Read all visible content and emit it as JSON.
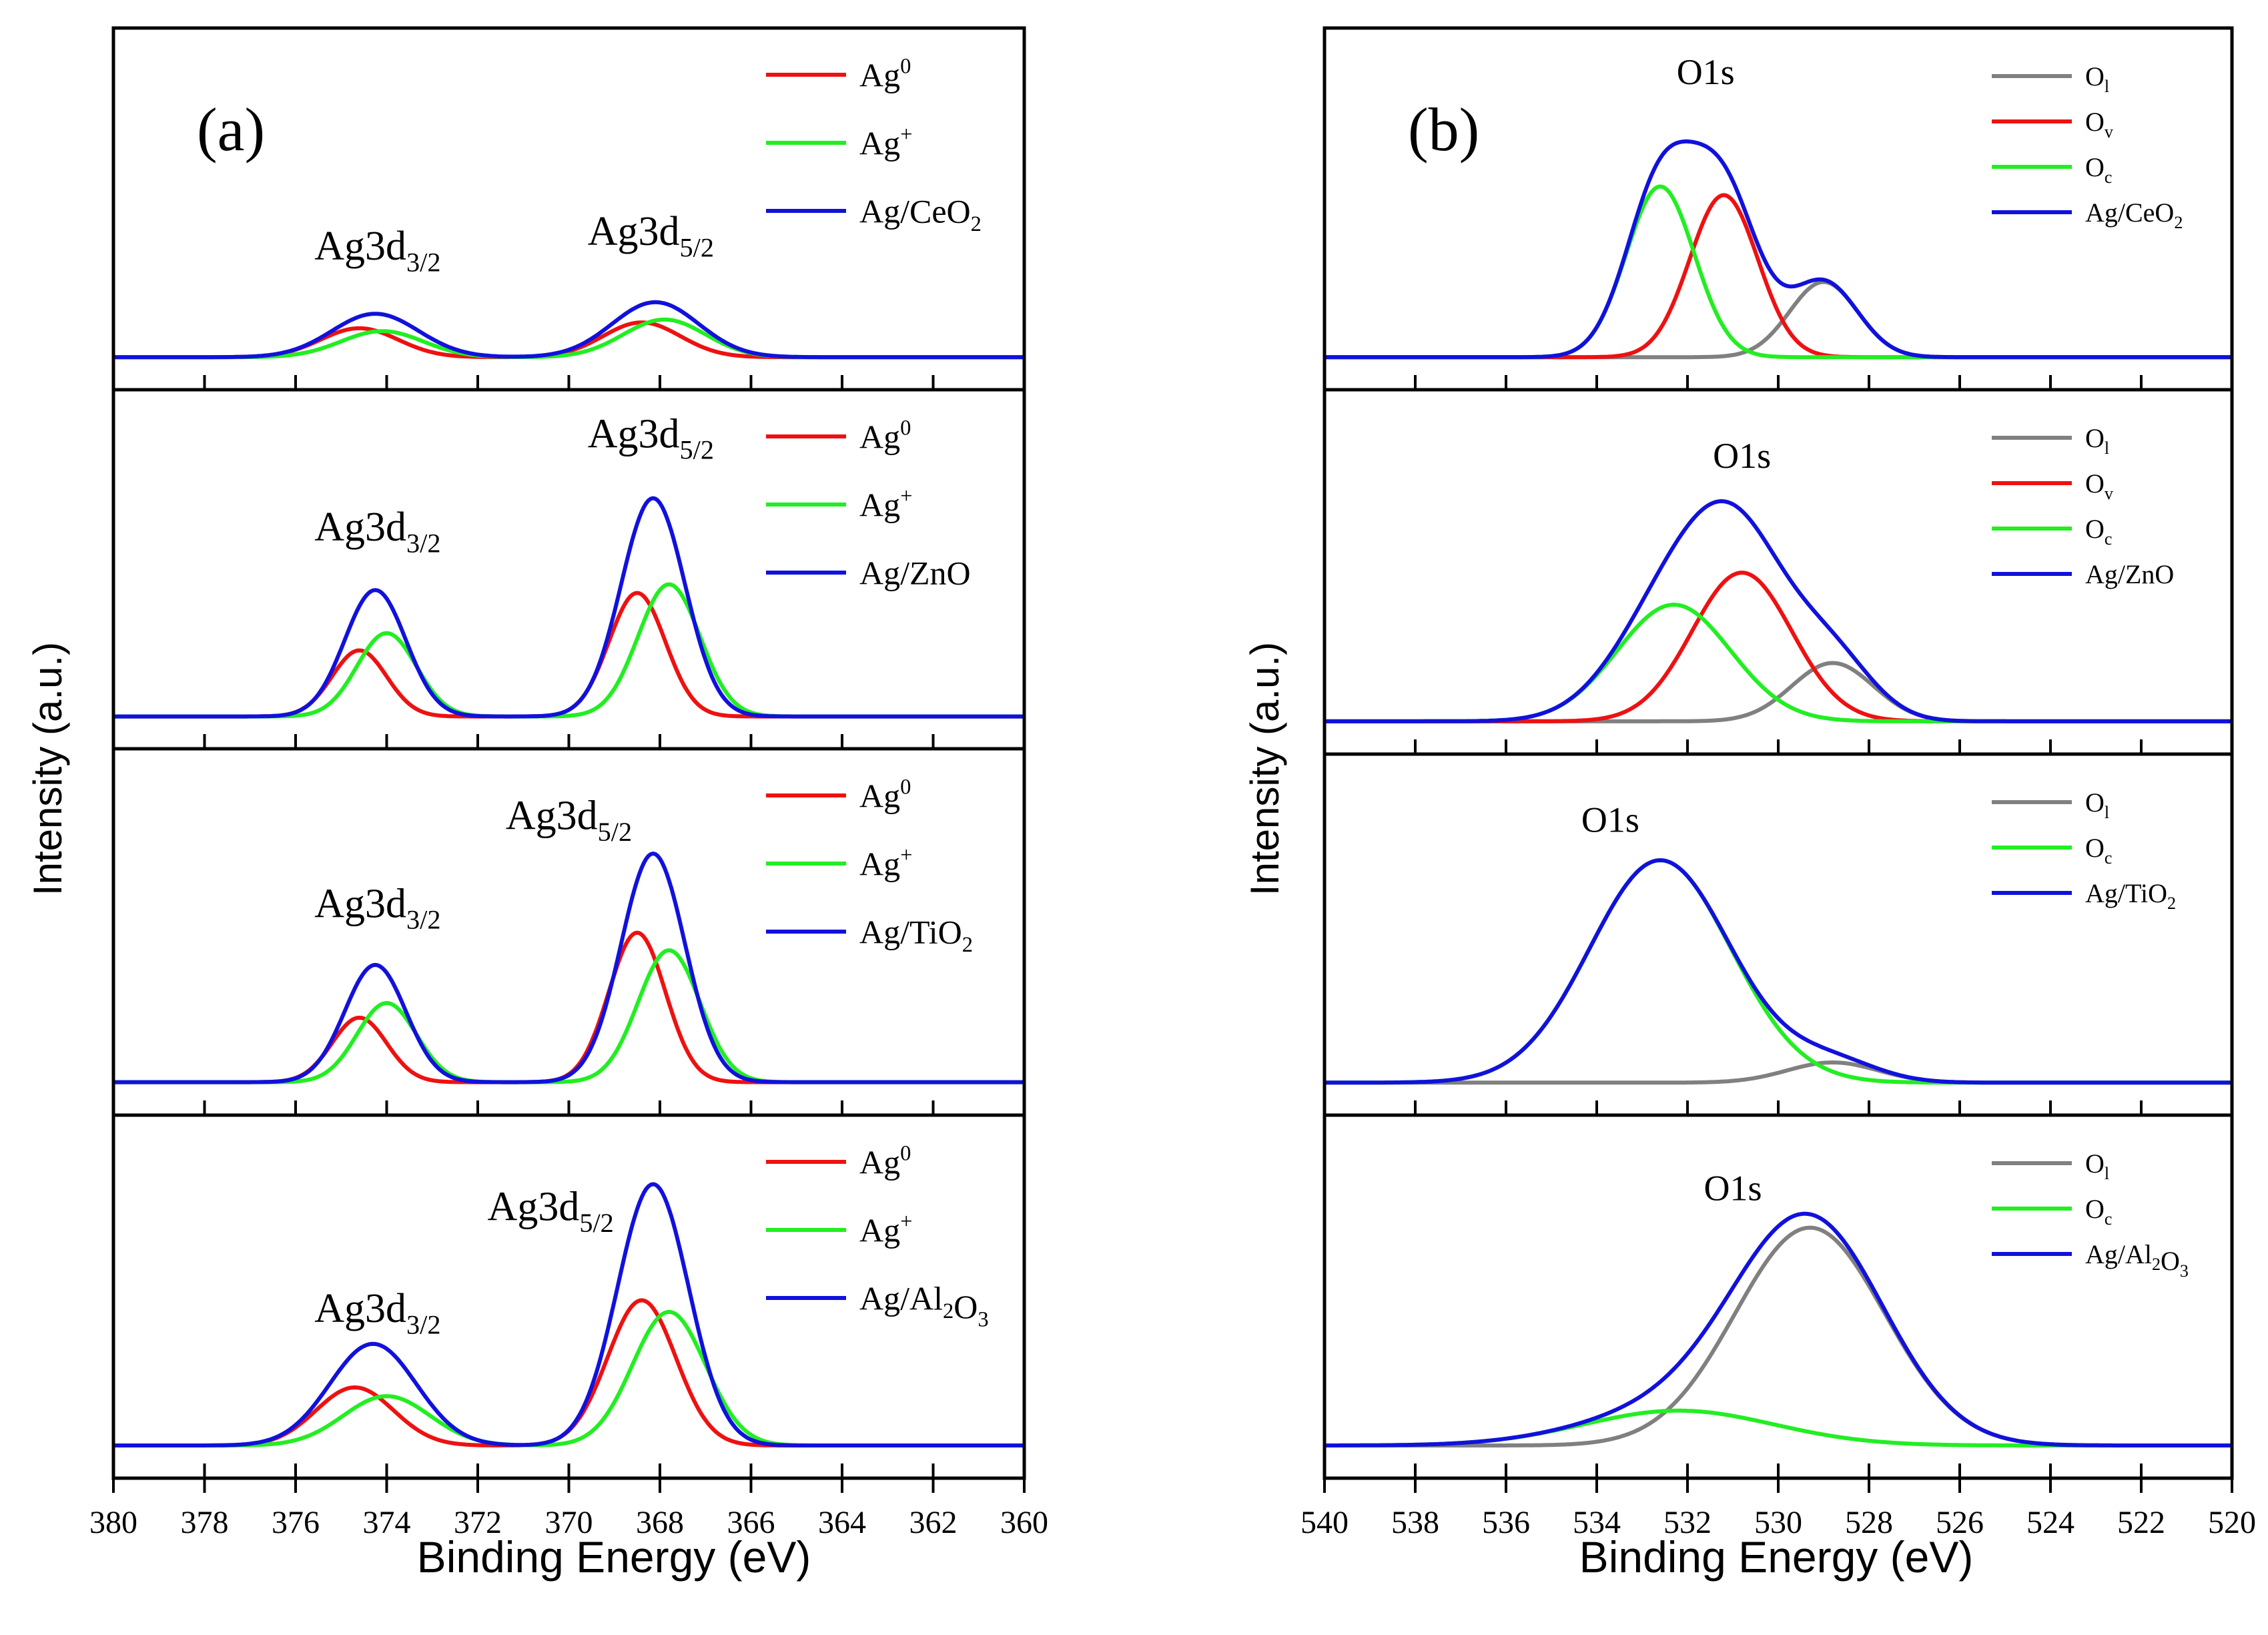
{
  "figure": {
    "panel_labels": [
      "(a)",
      "(b)"
    ],
    "ylabel": "Intensity (a.u.)",
    "xlabel": "Binding Energy (eV)",
    "colors": {
      "red": "#ee1111",
      "green": "#22ee22",
      "blue": "#1111dd",
      "gray": "#808080"
    }
  },
  "chart_data": [
    {
      "type": "line",
      "panel": "(a)",
      "xlabel": "Binding Energy (eV)",
      "ylabel": "Intensity (a.u.)",
      "xlim": [
        380,
        360
      ],
      "xticks": [
        380,
        378,
        376,
        374,
        372,
        370,
        368,
        366,
        364,
        362,
        360
      ],
      "grid": false,
      "legend_placement": "top-right",
      "subplots": [
        {
          "legend": [
            "Ag",
            "Ag",
            "Ag/CeO"
          ],
          "legend_rich": [
            [
              "Ag",
              "0",
              "sup"
            ],
            [
              "Ag",
              "+",
              "sup"
            ],
            [
              "Ag/CeO",
              "2",
              "sub"
            ]
          ],
          "annotations": [
            {
              "text": "Ag3d",
              "sub": "3/2",
              "x": 374.2,
              "y": 0.4
            },
            {
              "text": "Ag3d",
              "sub": "5/2",
              "x": 368.2,
              "y": 0.44
            }
          ],
          "ymax": 1.0,
          "peaks": [
            {
              "series": "Ag0",
              "color": "#ee1111",
              "components": [
                [
                  374.6,
                  0.1,
                  0.85
                ],
                [
                  368.4,
                  0.12,
                  0.85
                ]
              ]
            },
            {
              "series": "Ag+",
              "color": "#22ee22",
              "components": [
                [
                  374.1,
                  0.09,
                  0.9
                ],
                [
                  367.9,
                  0.13,
                  0.9
                ]
              ]
            },
            {
              "series": "total",
              "color": "#1111dd",
              "components": [
                [
                  374.25,
                  0.15,
                  0.95
                ],
                [
                  368.1,
                  0.19,
                  0.95
                ]
              ]
            }
          ]
        },
        {
          "legend": [
            "Ag",
            "Ag",
            "Ag/ZnO"
          ],
          "legend_rich": [
            [
              "Ag",
              "0",
              "sup"
            ],
            [
              "Ag",
              "+",
              "sup"
            ],
            [
              "Ag/ZnO",
              "",
              "none"
            ]
          ],
          "annotations": [
            {
              "text": "Ag3d",
              "sub": "3/2",
              "x": 374.2,
              "y": 0.62
            },
            {
              "text": "Ag3d",
              "sub": "5/2",
              "x": 368.2,
              "y": 0.88
            }
          ],
          "ymax": 1.0,
          "peaks": [
            {
              "series": "Ag0",
              "color": "#ee1111",
              "components": [
                [
                  374.6,
                  0.23,
                  0.6
                ],
                [
                  368.5,
                  0.43,
                  0.62
                ]
              ]
            },
            {
              "series": "Ag+",
              "color": "#22ee22",
              "components": [
                [
                  374.0,
                  0.29,
                  0.65
                ],
                [
                  367.8,
                  0.46,
                  0.68
                ]
              ]
            },
            {
              "series": "total",
              "color": "#1111dd",
              "components": [
                [
                  374.25,
                  0.44,
                  0.67
                ],
                [
                  368.15,
                  0.76,
                  0.7
                ]
              ]
            }
          ]
        },
        {
          "legend": [
            "Ag",
            "Ag",
            "Ag/TiO"
          ],
          "legend_rich": [
            [
              "Ag",
              "0",
              "sup"
            ],
            [
              "Ag",
              "+",
              "sup"
            ],
            [
              "Ag/TiO",
              "2",
              "sub"
            ]
          ],
          "annotations": [
            {
              "text": "Ag3d",
              "sub": "3/2",
              "x": 374.2,
              "y": 0.58
            },
            {
              "text": "Ag3d",
              "sub": "5/2",
              "x": 370.0,
              "y": 0.82
            }
          ],
          "ymax": 1.0,
          "peaks": [
            {
              "series": "Ag0",
              "color": "#ee1111",
              "components": [
                [
                  374.6,
                  0.22,
                  0.6
                ],
                [
                  368.5,
                  0.51,
                  0.62
                ]
              ]
            },
            {
              "series": "Ag+",
              "color": "#22ee22",
              "components": [
                [
                  374.0,
                  0.27,
                  0.65
                ],
                [
                  367.8,
                  0.45,
                  0.68
                ]
              ]
            },
            {
              "series": "total",
              "color": "#1111dd",
              "components": [
                [
                  374.25,
                  0.4,
                  0.67
                ],
                [
                  368.15,
                  0.78,
                  0.7
                ]
              ]
            }
          ]
        },
        {
          "legend": [
            "Ag",
            "Ag",
            "Ag/Al"
          ],
          "legend_rich": [
            [
              "Ag",
              "0",
              "sup"
            ],
            [
              "Ag",
              "+",
              "sup"
            ],
            [
              "Ag/Al",
              "2",
              "sub",
              "O",
              "3",
              "sub"
            ]
          ],
          "annotations": [
            {
              "text": "Ag3d",
              "sub": "3/2",
              "x": 374.2,
              "y": 0.47
            },
            {
              "text": "Ag3d",
              "sub": "5/2",
              "x": 370.4,
              "y": 0.75
            }
          ],
          "ymax": 1.0,
          "peaks": [
            {
              "series": "Ag0",
              "color": "#ee1111",
              "components": [
                [
                  374.7,
                  0.2,
                  0.85
                ],
                [
                  368.4,
                  0.5,
                  0.75
                ]
              ]
            },
            {
              "series": "Ag+",
              "color": "#22ee22",
              "components": [
                [
                  374.0,
                  0.17,
                  0.95
                ],
                [
                  367.8,
                  0.46,
                  0.8
                ]
              ]
            },
            {
              "series": "total",
              "color": "#1111dd",
              "components": [
                [
                  374.3,
                  0.35,
                  0.95
                ],
                [
                  368.15,
                  0.9,
                  0.78
                ]
              ]
            }
          ]
        }
      ]
    },
    {
      "type": "line",
      "panel": "(b)",
      "xlabel": "Binding Energy (eV)",
      "ylabel": "Intensity (a.u.)",
      "xlim": [
        540,
        520
      ],
      "xticks": [
        540,
        538,
        536,
        534,
        532,
        530,
        528,
        526,
        524,
        522,
        520
      ],
      "grid": false,
      "legend_placement": "top-right",
      "subplots": [
        {
          "legend": [
            "O",
            "O",
            "O",
            "Ag/CeO"
          ],
          "legend_rich": [
            [
              "O",
              "l",
              "sub"
            ],
            [
              "O",
              "v",
              "sub"
            ],
            [
              "O",
              "c",
              "sub"
            ],
            [
              "Ag/CeO",
              "2",
              "sub"
            ]
          ],
          "annotations": [
            {
              "text": "O1s",
              "sub": "",
              "x": 531.6,
              "y": 0.88
            }
          ],
          "ymax": 1.0,
          "peaks": [
            {
              "series": "Ol",
              "color": "#808080",
              "components": [
                [
                  529.0,
                  0.26,
                  0.75
                ]
              ]
            },
            {
              "series": "Ov",
              "color": "#ee1111",
              "components": [
                [
                  531.2,
                  0.56,
                  0.75
                ]
              ]
            },
            {
              "series": "Oc",
              "color": "#22ee22",
              "components": [
                [
                  532.6,
                  0.59,
                  0.75
                ]
              ]
            },
            {
              "series": "total",
              "color": "#1111dd",
              "components": [
                [
                  532.6,
                  0.59,
                  0.75
                ],
                [
                  531.2,
                  0.56,
                  0.75
                ],
                [
                  529.0,
                  0.26,
                  0.75
                ]
              ]
            }
          ]
        },
        {
          "legend": [
            "O",
            "O",
            "O",
            "Ag/ZnO"
          ],
          "legend_rich": [
            [
              "O",
              "l",
              "sub"
            ],
            [
              "O",
              "v",
              "sub"
            ],
            [
              "O",
              "c",
              "sub"
            ],
            [
              "Ag/ZnO",
              "",
              "none"
            ]
          ],
          "annotations": [
            {
              "text": "O1s",
              "sub": "",
              "x": 530.8,
              "y": 0.82
            }
          ],
          "ymax": 1.0,
          "peaks": [
            {
              "series": "Ol",
              "color": "#808080",
              "components": [
                [
                  528.8,
                  0.2,
                  0.9
                ]
              ]
            },
            {
              "series": "Ov",
              "color": "#ee1111",
              "components": [
                [
                  530.8,
                  0.51,
                  1.1
                ]
              ]
            },
            {
              "series": "Oc",
              "color": "#22ee22",
              "components": [
                [
                  532.3,
                  0.4,
                  1.25
                ]
              ]
            },
            {
              "series": "total",
              "color": "#1111dd",
              "components": [
                [
                  532.3,
                  0.4,
                  1.25
                ],
                [
                  530.8,
                  0.51,
                  1.1
                ],
                [
                  528.8,
                  0.2,
                  0.9
                ]
              ]
            }
          ]
        },
        {
          "legend": [
            "O",
            "O",
            "Ag/TiO"
          ],
          "legend_rich": [
            [
              "O",
              "l",
              "sub"
            ],
            [
              "O",
              "c",
              "sub"
            ],
            [
              "Ag/TiO",
              "2",
              "sub"
            ]
          ],
          "annotations": [
            {
              "text": "O1s",
              "sub": "",
              "x": 533.7,
              "y": 0.82
            }
          ],
          "ymax": 1.0,
          "peaks": [
            {
              "series": "Ol",
              "color": "#808080",
              "components": [
                [
                  528.8,
                  0.07,
                  1.0
                ]
              ]
            },
            {
              "series": "Oc",
              "color": "#22ee22",
              "components": [
                [
                  532.6,
                  0.77,
                  1.55
                ]
              ]
            },
            {
              "series": "total",
              "color": "#1111dd",
              "components": [
                [
                  532.6,
                  0.77,
                  1.55
                ],
                [
                  528.8,
                  0.07,
                  1.0
                ]
              ]
            }
          ]
        },
        {
          "legend": [
            "O",
            "O",
            "Ag/Al"
          ],
          "legend_rich": [
            [
              "O",
              "l",
              "sub"
            ],
            [
              "O",
              "c",
              "sub"
            ],
            [
              "Ag/Al",
              "2",
              "sub",
              "O",
              "3",
              "sub"
            ]
          ],
          "annotations": [
            {
              "text": "O1s",
              "sub": "",
              "x": 531.0,
              "y": 0.8
            }
          ],
          "ymax": 1.0,
          "peaks": [
            {
              "series": "Ol",
              "color": "#808080",
              "components": [
                [
                  529.3,
                  0.75,
                  1.65
                ]
              ]
            },
            {
              "series": "Oc",
              "color": "#22ee22",
              "components": [
                [
                  532.2,
                  0.12,
                  2.1
                ]
              ]
            },
            {
              "series": "total",
              "color": "#1111dd",
              "components": [
                [
                  532.2,
                  0.12,
                  2.1
                ],
                [
                  529.3,
                  0.75,
                  1.65
                ]
              ]
            }
          ]
        }
      ]
    }
  ]
}
